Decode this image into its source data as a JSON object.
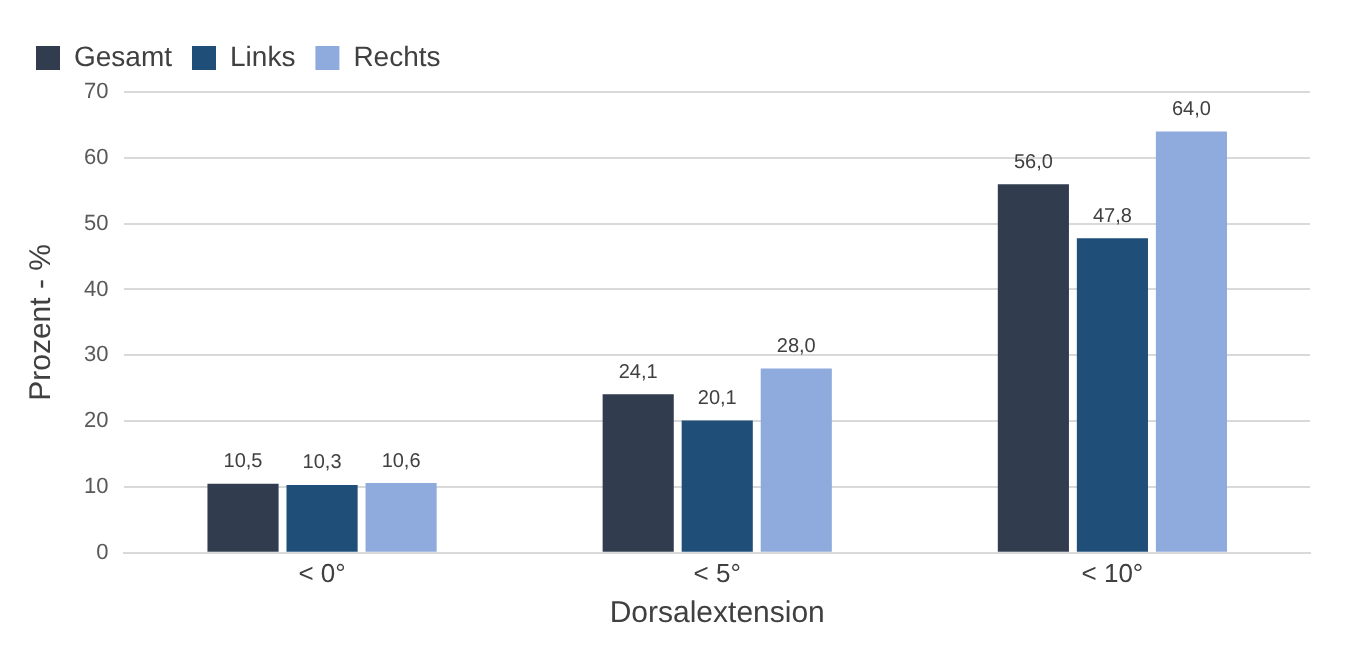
{
  "chart_data": {
    "type": "bar",
    "xlabel": "Dorsalextension",
    "ylabel": "Prozent - %",
    "categories": [
      "< 0°",
      "< 5°",
      "< 10°"
    ],
    "series": [
      {
        "name": "Gesamt",
        "color": "#323c4f",
        "values": [
          10.5,
          24.1,
          56.0
        ],
        "value_labels": [
          "10,5",
          "24,1",
          "56,0"
        ]
      },
      {
        "name": "Links",
        "color": "#1f4e79",
        "values": [
          10.3,
          20.1,
          47.8
        ],
        "value_labels": [
          "10,3",
          "20,1",
          "47,8"
        ]
      },
      {
        "name": "Rechts",
        "color": "#8faadc",
        "values": [
          10.6,
          28.0,
          64.0
        ],
        "value_labels": [
          "10,6",
          "28,0",
          "64,0"
        ]
      }
    ],
    "ylim": [
      0,
      70
    ],
    "yticks": [
      0,
      10,
      20,
      30,
      40,
      50,
      60,
      70
    ],
    "grid": "y",
    "legend": "top left"
  }
}
